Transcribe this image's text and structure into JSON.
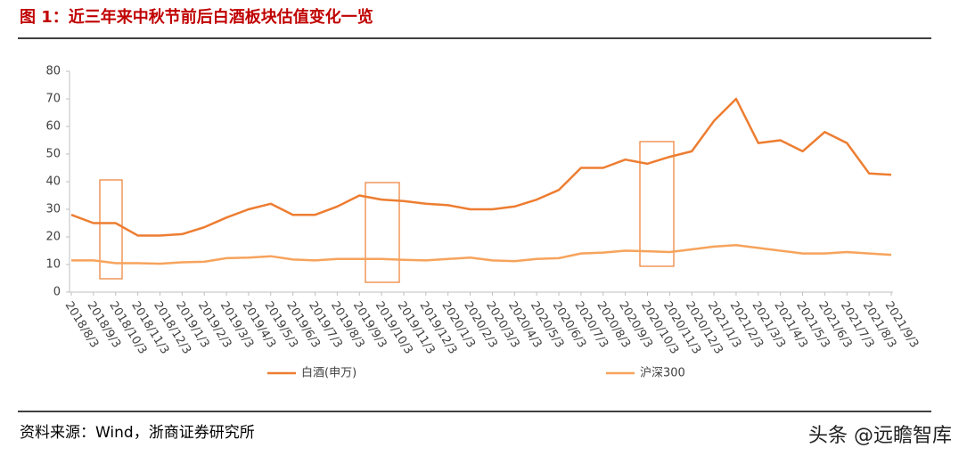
{
  "chart_data": {
    "type": "line",
    "title": "图 1：近三年来中秋节前后白酒板块估值变化一览",
    "categories": [
      "2018/8/3",
      "2018/9/3",
      "2018/10/3",
      "2018/11/3",
      "2018/12/3",
      "2019/1/3",
      "2019/2/3",
      "2019/3/3",
      "2019/4/3",
      "2019/5/3",
      "2019/6/3",
      "2019/7/3",
      "2019/8/3",
      "2019/9/3",
      "2019/10/3",
      "2019/11/3",
      "2019/12/3",
      "2020/1/3",
      "2020/2/3",
      "2020/3/3",
      "2020/4/3",
      "2020/5/3",
      "2020/6/3",
      "2020/7/3",
      "2020/8/3",
      "2020/9/3",
      "2020/10/3",
      "2020/11/3",
      "2020/12/3",
      "2021/1/3",
      "2021/2/3",
      "2021/3/3",
      "2021/4/3",
      "2021/5/3",
      "2021/6/3",
      "2021/7/3",
      "2021/8/3",
      "2021/9/3"
    ],
    "series": [
      {
        "name": "白酒(申万)",
        "color": "#ed7d31",
        "values": [
          28,
          25,
          25,
          20.5,
          20.5,
          21,
          23.5,
          27,
          30,
          32,
          28,
          28,
          31,
          35,
          33.5,
          33,
          32,
          31.5,
          30,
          30,
          31,
          33.5,
          37,
          45,
          45,
          48,
          46.5,
          49,
          51,
          62,
          70,
          54,
          55,
          51,
          58,
          54,
          43,
          42.5
        ]
      },
      {
        "name": "沪深300",
        "color": "#f7a35c",
        "values": [
          11.5,
          11.5,
          10.5,
          10.5,
          10.3,
          10.8,
          11,
          12.3,
          12.5,
          13,
          11.8,
          11.5,
          12,
          12,
          12,
          11.7,
          11.5,
          12,
          12.5,
          11.5,
          11.2,
          12,
          12.3,
          14,
          14.3,
          15,
          14.8,
          14.5,
          15.5,
          16.5,
          17,
          16,
          15,
          14,
          14,
          14.5,
          14,
          13.5
        ]
      }
    ],
    "ylim": [
      0,
      80
    ],
    "yticks": [
      0,
      10,
      20,
      30,
      40,
      50,
      60,
      70,
      80
    ],
    "source": "资料来源：Wind，浙商证券研究所",
    "watermark": "头条 @远瞻智库"
  }
}
